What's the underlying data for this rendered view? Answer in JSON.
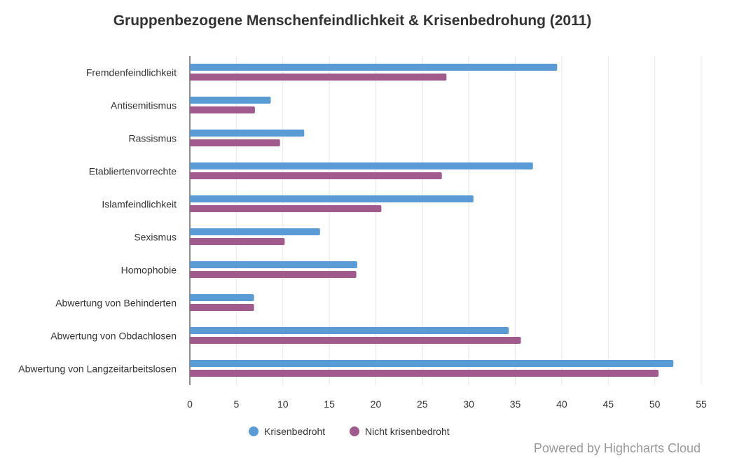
{
  "chart_data": {
    "type": "bar",
    "orientation": "horizontal",
    "title": "Gruppenbezogene Menschenfeindlichkeit & Krisenbedrohung (2011)",
    "categories": [
      "Fremdenfeindlichkeit",
      "Antisemitismus",
      "Rassismus",
      "Etabliertenvorrechte",
      "Islamfeindlichkeit",
      "Sexismus",
      "Homophobie",
      "Abwertung von Behinderten",
      "Abwertung von Obdachlosen",
      "Abwertung von Langzeitarbeitslosen"
    ],
    "series": [
      {
        "name": "Krisenbedroht",
        "color": "#5b9bd5",
        "values": [
          39.5,
          8.7,
          12.3,
          36.9,
          30.5,
          14.0,
          18.0,
          6.9,
          34.3,
          52.0
        ]
      },
      {
        "name": "Nicht krisenbedroht",
        "color": "#a05a8c",
        "values": [
          27.6,
          7.0,
          9.7,
          27.1,
          20.6,
          10.2,
          17.9,
          6.9,
          35.6,
          50.4
        ]
      }
    ],
    "xlim": [
      0,
      55
    ],
    "ticks": [
      "0",
      "5",
      "10",
      "15",
      "20",
      "25",
      "30",
      "35",
      "40",
      "45",
      "50",
      "55"
    ],
    "grid": true,
    "legend_position": "bottom"
  },
  "credits": "Powered by Highcharts Cloud"
}
